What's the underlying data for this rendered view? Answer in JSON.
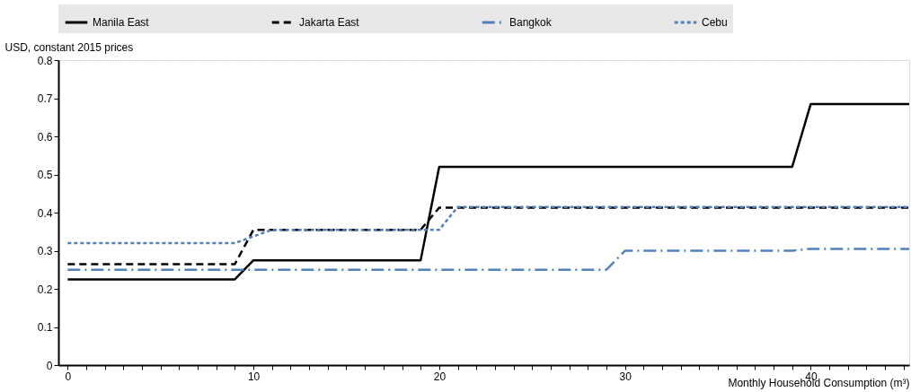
{
  "chart_data": {
    "type": "line",
    "ylabel": "USD, constant 2015 prices",
    "xlabel": "Monthly Household Consumption (m³)",
    "xlim": [
      -0.5,
      45.3
    ],
    "ylim": [
      0,
      0.8
    ],
    "xticks": [
      0,
      {
        "value": 1,
        "label": null
      },
      {
        "value": 2,
        "label": null
      },
      {
        "value": 3,
        "label": null
      },
      {
        "value": 4,
        "label": null
      },
      {
        "value": 5,
        "label": null
      },
      {
        "value": 6,
        "label": null
      },
      {
        "value": 7,
        "label": null
      },
      {
        "value": 8,
        "label": null
      },
      {
        "value": 9,
        "label": null
      },
      10,
      {
        "value": 11,
        "label": null
      },
      {
        "value": 12,
        "label": null
      },
      {
        "value": 13,
        "label": null
      },
      {
        "value": 14,
        "label": null
      },
      {
        "value": 15,
        "label": null
      },
      {
        "value": 16,
        "label": null
      },
      {
        "value": 17,
        "label": null
      },
      {
        "value": 18,
        "label": null
      },
      {
        "value": 19,
        "label": null
      },
      20,
      {
        "value": 21,
        "label": null
      },
      {
        "value": 22,
        "label": null
      },
      {
        "value": 23,
        "label": null
      },
      {
        "value": 24,
        "label": null
      },
      {
        "value": 25,
        "label": null
      },
      {
        "value": 26,
        "label": null
      },
      {
        "value": 27,
        "label": null
      },
      {
        "value": 28,
        "label": null
      },
      {
        "value": 29,
        "label": null
      },
      30,
      {
        "value": 31,
        "label": null
      },
      {
        "value": 32,
        "label": null
      },
      {
        "value": 33,
        "label": null
      },
      {
        "value": 34,
        "label": null
      },
      {
        "value": 35,
        "label": null
      },
      {
        "value": 36,
        "label": null
      },
      {
        "value": 37,
        "label": null
      },
      {
        "value": 38,
        "label": null
      },
      {
        "value": 39,
        "label": null
      },
      40,
      {
        "value": 41,
        "label": null
      },
      {
        "value": 42,
        "label": null
      },
      {
        "value": 43,
        "label": null
      },
      {
        "value": 44,
        "label": null
      },
      {
        "value": 45,
        "label": null
      }
    ],
    "yticks": [
      0,
      0.1,
      0.2,
      0.3,
      0.4,
      0.5,
      0.6,
      0.7,
      0.8
    ],
    "grid": "x",
    "legend": "top",
    "marker": "none",
    "series": [
      {
        "name": "Manila East",
        "color": "#000000",
        "line_style": "solid",
        "x": [
          0,
          9,
          10,
          19,
          20,
          39,
          40,
          45.3
        ],
        "values": [
          0.225,
          0.225,
          0.275,
          0.275,
          0.52,
          0.52,
          0.685,
          0.685
        ]
      },
      {
        "name": "Jakarta East",
        "color": "#000000",
        "line_style": "dashed",
        "x": [
          0,
          9,
          10,
          19,
          20,
          45.3
        ],
        "values": [
          0.265,
          0.265,
          0.355,
          0.355,
          0.413,
          0.413
        ]
      },
      {
        "name": "Bangkok",
        "color": "#4f81bd",
        "line_style": "dashdot",
        "x": [
          0,
          29,
          30,
          39,
          40,
          45.3
        ],
        "values": [
          0.25,
          0.25,
          0.3,
          0.3,
          0.305,
          0.305
        ]
      },
      {
        "name": "Cebu",
        "color": "#4f81bd",
        "line_style": "dotted",
        "x": [
          0,
          9,
          11,
          20,
          21,
          45.3
        ],
        "values": [
          0.32,
          0.32,
          0.355,
          0.355,
          0.415,
          0.415
        ]
      }
    ]
  }
}
